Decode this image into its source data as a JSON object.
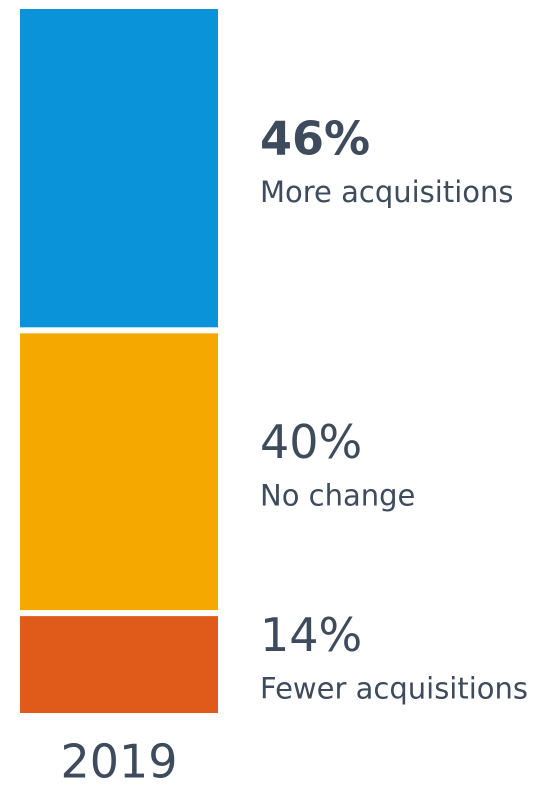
{
  "chart_data": {
    "type": "stacked_bar",
    "categories": [
      "2019"
    ],
    "series": [
      {
        "name": "More acquisitions",
        "color": "#0a93d8",
        "values": [
          46
        ],
        "value_labels": [
          "46%"
        ]
      },
      {
        "name": "No change",
        "color": "#f5a800",
        "values": [
          40
        ],
        "value_labels": [
          "40%"
        ]
      },
      {
        "name": "Fewer acquisitions",
        "color": "#e05a19",
        "values": [
          14
        ],
        "value_labels": [
          "14%"
        ]
      }
    ]
  }
}
